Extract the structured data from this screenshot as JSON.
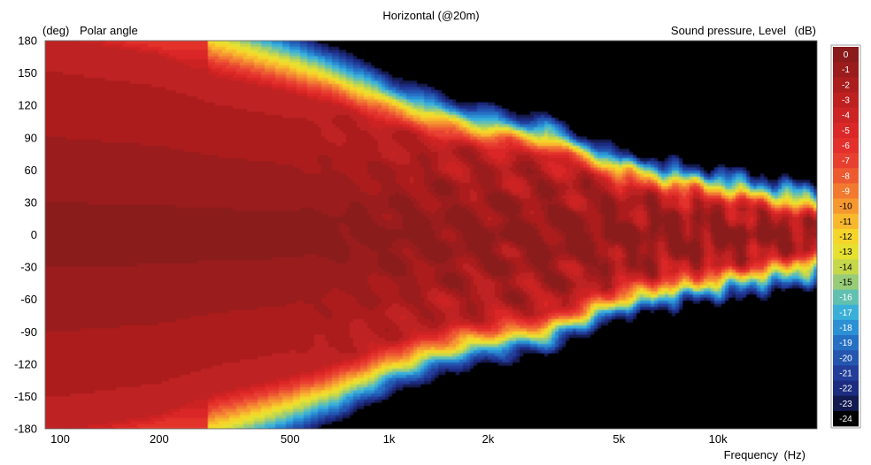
{
  "chart_data": {
    "type": "heatmap",
    "title": "Horizontal (@20m)",
    "ylabel_unit": "(deg)",
    "ylabel": "Polar angle",
    "zlabel": "Sound pressure, Level",
    "zlabel_unit": "(dB)",
    "xlabel": "Frequency",
    "xlabel_unit": "(Hz)",
    "x_scale": "log",
    "xlim": [
      90,
      20000
    ],
    "ylim": [
      -180,
      180
    ],
    "x_ticks": [
      {
        "value": 100,
        "label": "100"
      },
      {
        "value": 200,
        "label": "200"
      },
      {
        "value": 500,
        "label": "500"
      },
      {
        "value": 1000,
        "label": "1k"
      },
      {
        "value": 2000,
        "label": "2k"
      },
      {
        "value": 5000,
        "label": "5k"
      },
      {
        "value": 10000,
        "label": "10k"
      }
    ],
    "y_ticks": [
      180,
      150,
      120,
      90,
      60,
      30,
      0,
      -30,
      -60,
      -90,
      -120,
      -150,
      -180
    ],
    "colorbar": {
      "levels": [
        "0",
        "-1",
        "-2",
        "-3",
        "-4",
        "-5",
        "-6",
        "-7",
        "-8",
        "-9",
        "-10",
        "-11",
        "-12",
        "-13",
        "-14",
        "-15",
        "-16",
        "-17",
        "-18",
        "-19",
        "-20",
        "-21",
        "-22",
        "-23",
        "-24"
      ],
      "colors": [
        "#8B1A1A",
        "#9A1C1C",
        "#AC1E1E",
        "#BE2020",
        "#CC2424",
        "#DA2828",
        "#E3302C",
        "#E84030",
        "#EE5A30",
        "#F27A30",
        "#F69830",
        "#F8B82E",
        "#F5D52A",
        "#E6E030",
        "#C6D84A",
        "#98CC78",
        "#62C0B0",
        "#3AB0D8",
        "#2C90D4",
        "#2670C4",
        "#2456B0",
        "#223E9A",
        "#1C2C80",
        "#121A50",
        "#000000"
      ]
    },
    "frequency_hz": [
      100,
      200,
      300,
      500,
      700,
      1000,
      1500,
      2000,
      3000,
      5000,
      7000,
      10000,
      20000
    ],
    "minus6dB_beam_edge_deg": [
      180,
      165,
      145,
      130,
      118,
      100,
      85,
      78,
      72,
      45,
      35,
      28,
      12
    ],
    "near_on_axis_level_db": -3,
    "off_axis_floor_db": -24
  }
}
